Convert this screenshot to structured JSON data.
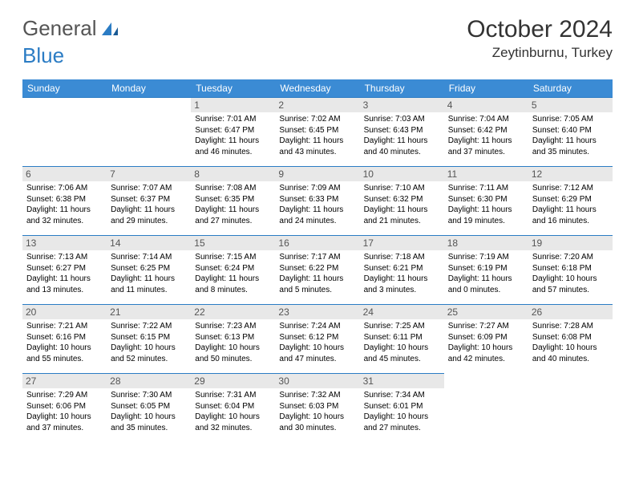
{
  "logo": {
    "text1": "General",
    "text2": "Blue"
  },
  "title": "October 2024",
  "location": "Zeytinburnu, Turkey",
  "colors": {
    "headerBg": "#3b8bd4",
    "headerText": "#ffffff",
    "borderTop": "#2b7cc4",
    "dateBg": "#e8e8e8",
    "logoBlue": "#2b7cc4"
  },
  "weekdays": [
    "Sunday",
    "Monday",
    "Tuesday",
    "Wednesday",
    "Thursday",
    "Friday",
    "Saturday"
  ],
  "leadingBlanks": 2,
  "days": [
    {
      "n": 1,
      "sr": "7:01 AM",
      "ss": "6:47 PM",
      "dl": "11 hours and 46 minutes."
    },
    {
      "n": 2,
      "sr": "7:02 AM",
      "ss": "6:45 PM",
      "dl": "11 hours and 43 minutes."
    },
    {
      "n": 3,
      "sr": "7:03 AM",
      "ss": "6:43 PM",
      "dl": "11 hours and 40 minutes."
    },
    {
      "n": 4,
      "sr": "7:04 AM",
      "ss": "6:42 PM",
      "dl": "11 hours and 37 minutes."
    },
    {
      "n": 5,
      "sr": "7:05 AM",
      "ss": "6:40 PM",
      "dl": "11 hours and 35 minutes."
    },
    {
      "n": 6,
      "sr": "7:06 AM",
      "ss": "6:38 PM",
      "dl": "11 hours and 32 minutes."
    },
    {
      "n": 7,
      "sr": "7:07 AM",
      "ss": "6:37 PM",
      "dl": "11 hours and 29 minutes."
    },
    {
      "n": 8,
      "sr": "7:08 AM",
      "ss": "6:35 PM",
      "dl": "11 hours and 27 minutes."
    },
    {
      "n": 9,
      "sr": "7:09 AM",
      "ss": "6:33 PM",
      "dl": "11 hours and 24 minutes."
    },
    {
      "n": 10,
      "sr": "7:10 AM",
      "ss": "6:32 PM",
      "dl": "11 hours and 21 minutes."
    },
    {
      "n": 11,
      "sr": "7:11 AM",
      "ss": "6:30 PM",
      "dl": "11 hours and 19 minutes."
    },
    {
      "n": 12,
      "sr": "7:12 AM",
      "ss": "6:29 PM",
      "dl": "11 hours and 16 minutes."
    },
    {
      "n": 13,
      "sr": "7:13 AM",
      "ss": "6:27 PM",
      "dl": "11 hours and 13 minutes."
    },
    {
      "n": 14,
      "sr": "7:14 AM",
      "ss": "6:25 PM",
      "dl": "11 hours and 11 minutes."
    },
    {
      "n": 15,
      "sr": "7:15 AM",
      "ss": "6:24 PM",
      "dl": "11 hours and 8 minutes."
    },
    {
      "n": 16,
      "sr": "7:17 AM",
      "ss": "6:22 PM",
      "dl": "11 hours and 5 minutes."
    },
    {
      "n": 17,
      "sr": "7:18 AM",
      "ss": "6:21 PM",
      "dl": "11 hours and 3 minutes."
    },
    {
      "n": 18,
      "sr": "7:19 AM",
      "ss": "6:19 PM",
      "dl": "11 hours and 0 minutes."
    },
    {
      "n": 19,
      "sr": "7:20 AM",
      "ss": "6:18 PM",
      "dl": "10 hours and 57 minutes."
    },
    {
      "n": 20,
      "sr": "7:21 AM",
      "ss": "6:16 PM",
      "dl": "10 hours and 55 minutes."
    },
    {
      "n": 21,
      "sr": "7:22 AM",
      "ss": "6:15 PM",
      "dl": "10 hours and 52 minutes."
    },
    {
      "n": 22,
      "sr": "7:23 AM",
      "ss": "6:13 PM",
      "dl": "10 hours and 50 minutes."
    },
    {
      "n": 23,
      "sr": "7:24 AM",
      "ss": "6:12 PM",
      "dl": "10 hours and 47 minutes."
    },
    {
      "n": 24,
      "sr": "7:25 AM",
      "ss": "6:11 PM",
      "dl": "10 hours and 45 minutes."
    },
    {
      "n": 25,
      "sr": "7:27 AM",
      "ss": "6:09 PM",
      "dl": "10 hours and 42 minutes."
    },
    {
      "n": 26,
      "sr": "7:28 AM",
      "ss": "6:08 PM",
      "dl": "10 hours and 40 minutes."
    },
    {
      "n": 27,
      "sr": "7:29 AM",
      "ss": "6:06 PM",
      "dl": "10 hours and 37 minutes."
    },
    {
      "n": 28,
      "sr": "7:30 AM",
      "ss": "6:05 PM",
      "dl": "10 hours and 35 minutes."
    },
    {
      "n": 29,
      "sr": "7:31 AM",
      "ss": "6:04 PM",
      "dl": "10 hours and 32 minutes."
    },
    {
      "n": 30,
      "sr": "7:32 AM",
      "ss": "6:03 PM",
      "dl": "10 hours and 30 minutes."
    },
    {
      "n": 31,
      "sr": "7:34 AM",
      "ss": "6:01 PM",
      "dl": "10 hours and 27 minutes."
    }
  ],
  "labels": {
    "sunrise": "Sunrise: ",
    "sunset": "Sunset: ",
    "daylight": "Daylight: "
  }
}
